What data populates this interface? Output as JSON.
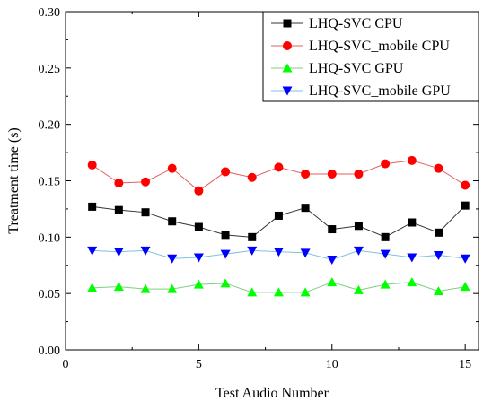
{
  "chart_data": {
    "type": "line",
    "title": "",
    "xlabel": "Test Audio Number",
    "ylabel": "Treatment time (s)",
    "xlim": [
      0,
      15.5
    ],
    "ylim": [
      0,
      0.3
    ],
    "xticks": [
      0,
      5,
      10,
      15
    ],
    "xtick_labels": [
      "0",
      "5",
      "10",
      "15"
    ],
    "yticks": [
      0.0,
      0.05,
      0.1,
      0.15,
      0.2,
      0.25,
      0.3
    ],
    "ytick_labels": [
      "0.00",
      "0.05",
      "0.10",
      "0.15",
      "0.20",
      "0.25",
      "0.30"
    ],
    "grid": false,
    "legend_position": "top-right",
    "x": [
      1,
      2,
      3,
      4,
      5,
      6,
      7,
      8,
      9,
      10,
      11,
      12,
      13,
      14,
      15
    ],
    "series": [
      {
        "name": "LHQ-SVC CPU",
        "marker": "square",
        "color": "#000000",
        "line_color": "#333333",
        "values": [
          0.127,
          0.124,
          0.122,
          0.114,
          0.109,
          0.102,
          0.1,
          0.119,
          0.126,
          0.107,
          0.11,
          0.1,
          0.113,
          0.104,
          0.128
        ]
      },
      {
        "name": "LHQ-SVC_mobile CPU",
        "marker": "circle",
        "color": "#ff0000",
        "line_color": "#e06060",
        "values": [
          0.164,
          0.148,
          0.149,
          0.161,
          0.141,
          0.158,
          0.153,
          0.162,
          0.156,
          0.156,
          0.156,
          0.165,
          0.168,
          0.161,
          0.146
        ]
      },
      {
        "name": "LHQ-SVC GPU",
        "marker": "triangle-up",
        "color": "#00ff00",
        "line_color": "#7fcf7f",
        "values": [
          0.055,
          0.056,
          0.054,
          0.054,
          0.058,
          0.059,
          0.051,
          0.051,
          0.051,
          0.06,
          0.053,
          0.058,
          0.06,
          0.052,
          0.056
        ]
      },
      {
        "name": "LHQ-SVC_mobile GPU",
        "marker": "triangle-down",
        "color": "#0000ff",
        "line_color": "#80c0e0",
        "values": [
          0.088,
          0.087,
          0.088,
          0.081,
          0.082,
          0.085,
          0.088,
          0.087,
          0.086,
          0.08,
          0.088,
          0.085,
          0.082,
          0.084,
          0.081
        ]
      }
    ]
  }
}
